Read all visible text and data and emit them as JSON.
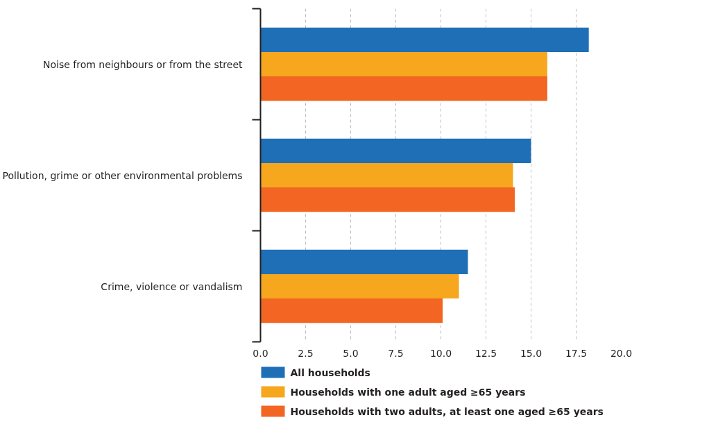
{
  "chart_data": {
    "type": "bar",
    "orientation": "horizontal",
    "categories": [
      "Noise from neighbours or from the street",
      "Pollution, grime or other environmental problems",
      "Crime, violence or vandalism"
    ],
    "series": [
      {
        "name": "All households",
        "color": "#1f6fb7",
        "values": [
          18.2,
          15.0,
          11.5
        ]
      },
      {
        "name": "Households with one adult aged ≥65 years",
        "color": "#f6a71e",
        "values": [
          15.9,
          14.0,
          11.0
        ]
      },
      {
        "name": "Households with two adults, at least one aged ≥65 years",
        "color": "#f26522",
        "values": [
          15.9,
          14.1,
          10.1
        ]
      }
    ],
    "xlim": [
      0,
      20
    ],
    "xticks": [
      {
        "value": 0,
        "label": "0.0"
      },
      {
        "value": 2.5,
        "label": "2.5"
      },
      {
        "value": 5,
        "label": "5.0"
      },
      {
        "value": 7.5,
        "label": "7.5"
      },
      {
        "value": 10,
        "label": "10.0"
      },
      {
        "value": 12.5,
        "label": "12.5"
      },
      {
        "value": 15,
        "label": "15.0"
      },
      {
        "value": 17.5,
        "label": "17.5"
      },
      {
        "value": 20,
        "label": "20.0"
      }
    ],
    "grid": "x",
    "legend": "bottom"
  }
}
